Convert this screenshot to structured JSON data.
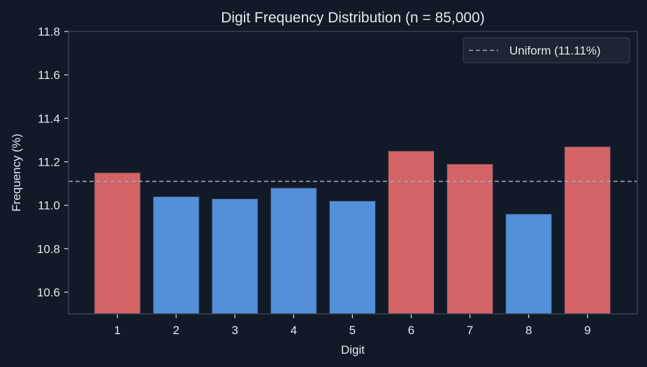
{
  "chart_data": {
    "type": "bar",
    "title": "Digit Frequency Distribution (n = 85,000)",
    "xlabel": "Digit",
    "ylabel": "Frequency (%)",
    "categories": [
      "1",
      "2",
      "3",
      "4",
      "5",
      "6",
      "7",
      "8",
      "9"
    ],
    "values": [
      11.15,
      11.04,
      11.03,
      11.08,
      11.02,
      11.25,
      11.19,
      10.96,
      11.27
    ],
    "bar_colors": [
      "#d46466",
      "#5390d9",
      "#5390d9",
      "#5390d9",
      "#5390d9",
      "#d46466",
      "#d46466",
      "#5390d9",
      "#d46466"
    ],
    "ylim": [
      10.5,
      11.8
    ],
    "yticks": [
      10.6,
      10.8,
      11.0,
      11.2,
      11.4,
      11.6,
      11.8
    ],
    "ytick_labels": [
      "10.6",
      "10.8",
      "11.0",
      "11.2",
      "11.4",
      "11.6",
      "11.8"
    ],
    "reference_line": {
      "value": 11.11,
      "style": "dashed",
      "color": "#a0a7b3",
      "label": "Uniform (11.11%)"
    },
    "legend": {
      "position": "upper right",
      "entries": [
        "Uniform (11.11%)"
      ]
    },
    "grid": false,
    "colors": {
      "background": "#121927",
      "axes": "#3a4352",
      "above_uniform": "#d46466",
      "below_uniform": "#5390d9",
      "text": "#e6e8ec",
      "legend_bg": "#1d2533"
    }
  }
}
